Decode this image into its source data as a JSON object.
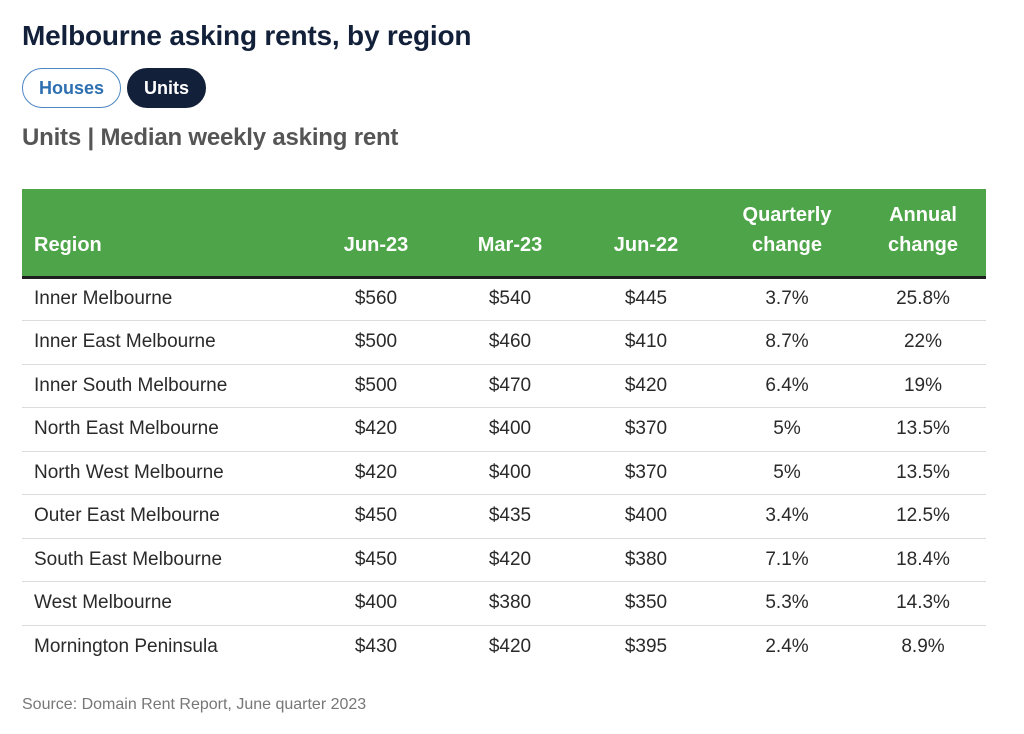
{
  "title": "Melbourne asking rents, by region",
  "toggles": [
    {
      "label": "Houses",
      "active": false
    },
    {
      "label": "Units",
      "active": true
    }
  ],
  "subtitle": "Units | Median weekly asking rent",
  "source": "Source: Domain Rent Report, June quarter 2023",
  "colors": {
    "header_bg": "#4ea448",
    "title": "#13203a",
    "active_toggle": "#13203a",
    "inactive_toggle_border": "#4b86c3"
  },
  "chart_data": {
    "type": "table",
    "title": "Units | Median weekly asking rent",
    "columns": [
      "Region",
      "Jun-23",
      "Mar-23",
      "Jun-22",
      "Quarterly change",
      "Annual change"
    ],
    "header_lines": [
      [
        "",
        "Region"
      ],
      [
        "",
        "Jun-23"
      ],
      [
        "",
        "Mar-23"
      ],
      [
        "",
        "Jun-22"
      ],
      [
        "Quarterly",
        "change"
      ],
      [
        "Annual",
        "change"
      ]
    ],
    "rows": [
      [
        "Inner Melbourne",
        "$560",
        "$540",
        "$445",
        "3.7%",
        "25.8%"
      ],
      [
        "Inner East Melbourne",
        "$500",
        "$460",
        "$410",
        "8.7%",
        "22%"
      ],
      [
        "Inner South Melbourne",
        "$500",
        "$470",
        "$420",
        "6.4%",
        "19%"
      ],
      [
        "North East Melbourne",
        "$420",
        "$400",
        "$370",
        "5%",
        "13.5%"
      ],
      [
        "North West Melbourne",
        "$420",
        "$400",
        "$370",
        "5%",
        "13.5%"
      ],
      [
        "Outer East Melbourne",
        "$450",
        "$435",
        "$400",
        "3.4%",
        "12.5%"
      ],
      [
        "South East Melbourne",
        "$450",
        "$420",
        "$380",
        "7.1%",
        "18.4%"
      ],
      [
        "West Melbourne",
        "$400",
        "$380",
        "$350",
        "5.3%",
        "14.3%"
      ],
      [
        "Mornington Peninsula",
        "$430",
        "$420",
        "$395",
        "2.4%",
        "8.9%"
      ]
    ]
  }
}
